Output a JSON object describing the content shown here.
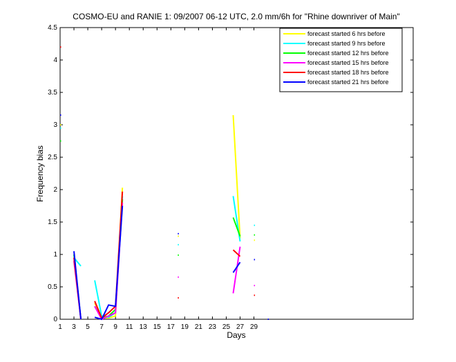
{
  "chart_data": {
    "type": "line",
    "title": "COSMO-EU and RANIE 1: 09/2007 06-12 UTC, 2.0 mm/6h for \"Rhine downriver of Main\"",
    "x_label": "Days",
    "y_label": "Frequency bias",
    "x": [
      1,
      2,
      3,
      4,
      5,
      6,
      7,
      8,
      9,
      10,
      11,
      12,
      13,
      14,
      15,
      16,
      17,
      18,
      19,
      20,
      21,
      22,
      23,
      24,
      25,
      26,
      27,
      28,
      29,
      30,
      31
    ],
    "xlim": [
      1,
      52
    ],
    "xticks": [
      1,
      3,
      5,
      7,
      9,
      11,
      13,
      15,
      17,
      19,
      21,
      23,
      25,
      27,
      29
    ],
    "ylim": [
      0,
      4.5
    ],
    "yticks": [
      0,
      0.5,
      1,
      1.5,
      2,
      2.5,
      3,
      3.5,
      4,
      4.5
    ],
    "legend": "upper right",
    "series": [
      {
        "name": "forecast started 6 hrs before",
        "color": "#ffff00",
        "values": [
          3.0,
          null,
          1.0,
          null,
          null,
          0.25,
          0.02,
          0.02,
          0.05,
          2.03,
          null,
          null,
          null,
          null,
          null,
          null,
          null,
          1.28,
          null,
          null,
          null,
          null,
          null,
          null,
          null,
          3.15,
          1.25,
          null,
          1.22,
          null,
          null
        ]
      },
      {
        "name": "forecast started 9 hrs before",
        "color": "#00ffff",
        "values": [
          2.95,
          null,
          0.95,
          0.82,
          null,
          0.6,
          0.05,
          0.03,
          0.1,
          1.9,
          null,
          null,
          null,
          null,
          null,
          null,
          null,
          1.15,
          null,
          null,
          null,
          null,
          null,
          null,
          null,
          1.9,
          1.2,
          null,
          1.45,
          null,
          null
        ]
      },
      {
        "name": "forecast started 12 hrs before",
        "color": "#00ff00",
        "values": [
          2.75,
          null,
          1.0,
          0,
          null,
          0.2,
          0.02,
          0.05,
          0.15,
          1.85,
          null,
          null,
          null,
          null,
          null,
          null,
          null,
          0.99,
          null,
          null,
          null,
          null,
          null,
          null,
          null,
          1.57,
          1.28,
          null,
          1.3,
          null,
          null
        ]
      },
      {
        "name": "forecast started 15 hrs before",
        "color": "#ff00ff",
        "values": [
          null,
          null,
          0.9,
          0,
          null,
          0.2,
          0,
          0.05,
          0.1,
          1.8,
          null,
          null,
          null,
          null,
          null,
          null,
          null,
          0.65,
          null,
          null,
          null,
          null,
          null,
          null,
          null,
          0.4,
          1.12,
          null,
          0.52,
          null,
          null
        ]
      },
      {
        "name": "forecast started 18 hrs before",
        "color": "#ff0000",
        "values": [
          4.2,
          null,
          0.95,
          0,
          null,
          0.28,
          0.02,
          0.1,
          0.2,
          1.97,
          null,
          null,
          null,
          null,
          null,
          null,
          null,
          0.33,
          null,
          null,
          null,
          null,
          null,
          null,
          null,
          1.07,
          0.97,
          null,
          0.37,
          null,
          null
        ]
      },
      {
        "name": "forecast started 21 hrs before",
        "color": "#0000ff",
        "values": [
          3.15,
          null,
          1.05,
          0,
          null,
          0.03,
          0,
          0.22,
          0.2,
          1.75,
          null,
          null,
          null,
          null,
          null,
          null,
          null,
          1.32,
          null,
          null,
          null,
          null,
          null,
          null,
          null,
          0.72,
          0.88,
          null,
          0.92,
          null,
          0
        ]
      }
    ]
  }
}
